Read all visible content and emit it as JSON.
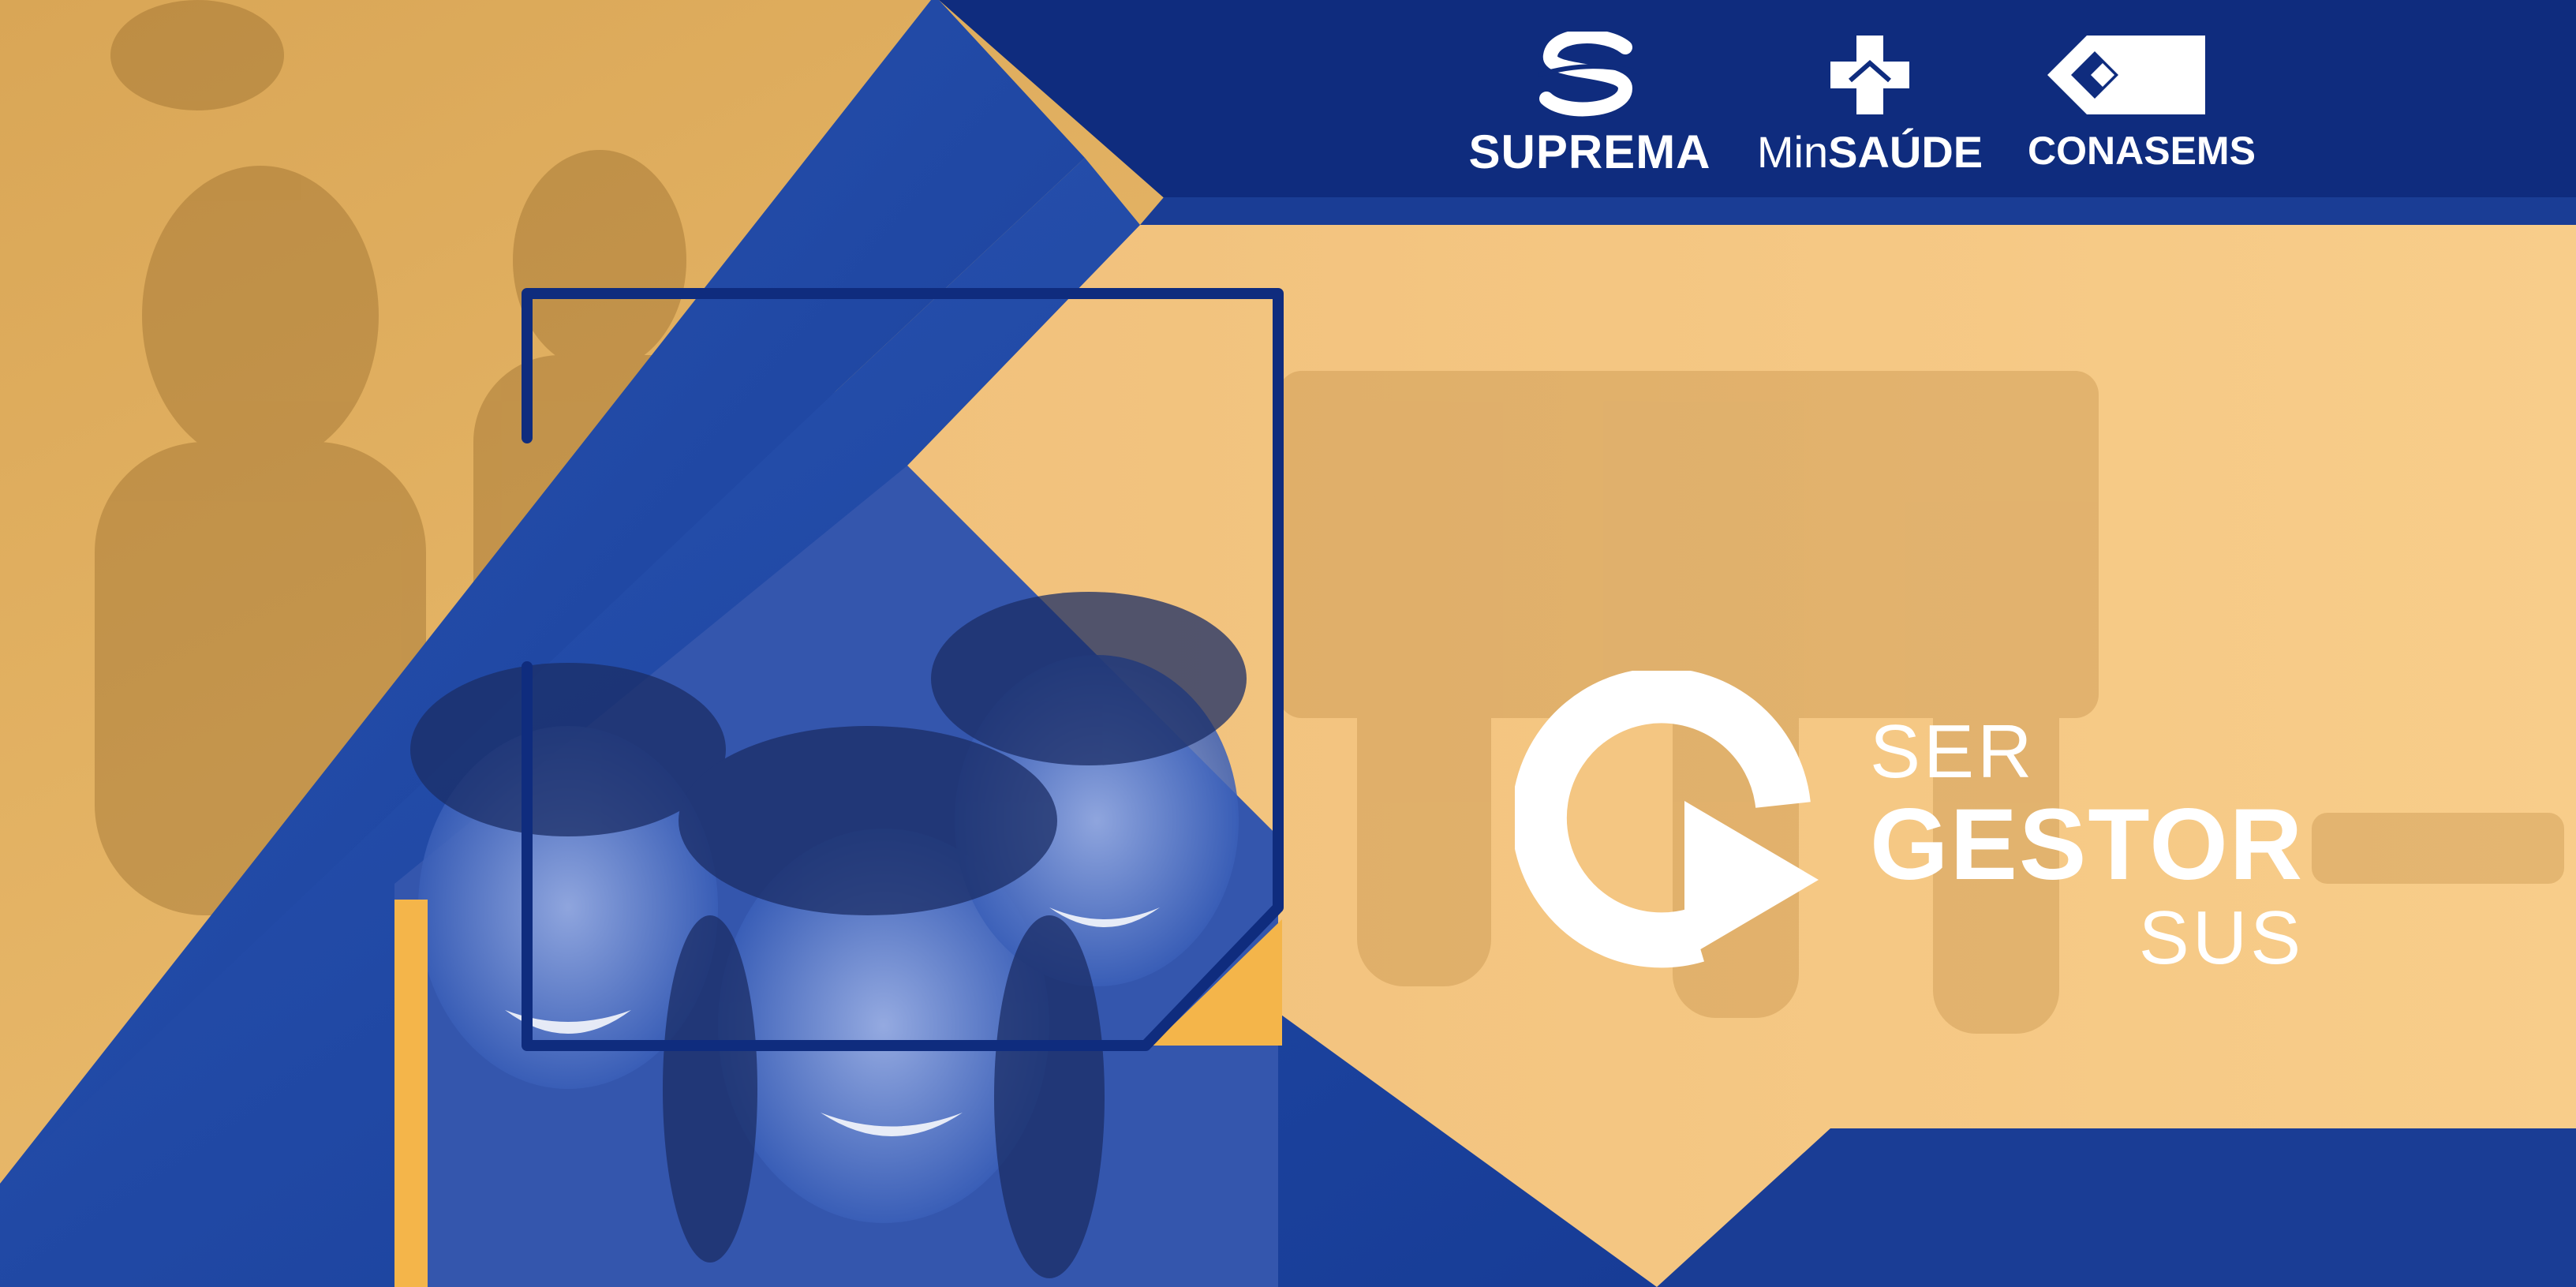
{
  "colors": {
    "navy": "#0f2c7e",
    "royal": "#1e49a8",
    "gold": "#f4b54a",
    "peach": "#f6c57a",
    "white": "#ffffff"
  },
  "logos": {
    "suprema": {
      "label": "SUPREMA",
      "icon": "suprema-s-icon"
    },
    "minsaude": {
      "label_light": "Min",
      "label_bold": "SAÚDE",
      "icon": "health-cross-icon"
    },
    "conasems": {
      "label": "CONASEMS",
      "icon": "conasems-c-icon"
    }
  },
  "brand": {
    "line1": "SER",
    "line2": "GESTOR",
    "line3": "SUS",
    "icon": "play-ring-icon"
  }
}
